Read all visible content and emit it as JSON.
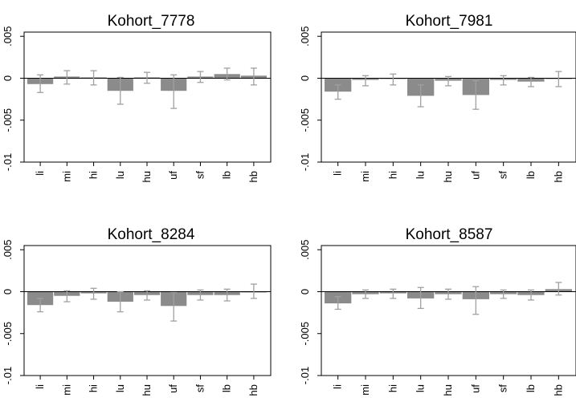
{
  "chart_data": [
    {
      "type": "bar",
      "title": "Kohort_7778",
      "categories": [
        "li",
        "mi",
        "hi",
        "lu",
        "hu",
        "uf",
        "sf",
        "lb",
        "hb"
      ],
      "values": [
        -0.0007,
        0.0002,
        0.0001,
        -0.0015,
        0.0001,
        -0.0015,
        0.0002,
        0.0005,
        0.0003
      ],
      "error_low": [
        -0.0017,
        -0.0007,
        -0.0008,
        -0.0031,
        -0.0006,
        -0.0036,
        -0.0005,
        -0.0002,
        -0.0008
      ],
      "error_high": [
        0.0004,
        0.0009,
        0.0009,
        0.0001,
        0.0007,
        0.0004,
        0.0008,
        0.0012,
        0.0012
      ],
      "ylim": [
        -0.01,
        0.0055
      ],
      "yticks": [
        0.005,
        0,
        -0.005,
        -0.01
      ],
      "ytick_labels": [
        ".005",
        "0",
        "-.005",
        "-.01"
      ],
      "grid": false
    },
    {
      "type": "bar",
      "title": "Kohort_7981",
      "categories": [
        "li",
        "mi",
        "hi",
        "lu",
        "hu",
        "uf",
        "sf",
        "lb",
        "hb"
      ],
      "values": [
        -0.0016,
        -0.0002,
        -0.0001,
        -0.0021,
        -0.0003,
        -0.002,
        -0.0002,
        -0.0004,
        -0.0001
      ],
      "error_low": [
        -0.0025,
        -0.0009,
        -0.0008,
        -0.0034,
        -0.0009,
        -0.0037,
        -0.0008,
        -0.001,
        -0.001
      ],
      "error_high": [
        -0.0008,
        0.0003,
        0.0005,
        -0.0008,
        0.0002,
        -0.0003,
        0.0003,
        0.0001,
        0.0008
      ],
      "ylim": [
        -0.01,
        0.0055
      ],
      "yticks": [
        0.005,
        0,
        -0.005,
        -0.01
      ],
      "ytick_labels": [
        ".005",
        "0",
        "-.005",
        "-.01"
      ],
      "grid": false
    },
    {
      "type": "bar",
      "title": "Kohort_8284",
      "categories": [
        "li",
        "mi",
        "hi",
        "lu",
        "hu",
        "uf",
        "sf",
        "lb",
        "hb"
      ],
      "values": [
        -0.0016,
        -0.0005,
        -0.0002,
        -0.0012,
        -0.0004,
        -0.0017,
        -0.0004,
        -0.0004,
        0.0
      ],
      "error_low": [
        -0.0024,
        -0.0012,
        -0.0009,
        -0.0024,
        -0.001,
        -0.0035,
        -0.001,
        -0.0011,
        -0.0008
      ],
      "error_high": [
        -0.0008,
        0.0001,
        0.0004,
        0.0,
        0.0001,
        -0.0001,
        0.0002,
        0.0003,
        0.0009
      ],
      "ylim": [
        -0.01,
        0.0055
      ],
      "yticks": [
        0.005,
        0,
        -0.005,
        -0.01
      ],
      "ytick_labels": [
        ".005",
        "0",
        "-.005",
        "-.01"
      ],
      "grid": false
    },
    {
      "type": "bar",
      "title": "Kohort_8587",
      "categories": [
        "li",
        "mi",
        "hi",
        "lu",
        "hu",
        "uf",
        "sf",
        "lb",
        "hb"
      ],
      "values": [
        -0.0014,
        -0.0003,
        -0.0002,
        -0.0008,
        -0.0003,
        -0.0009,
        -0.0003,
        -0.0004,
        0.0003
      ],
      "error_low": [
        -0.0021,
        -0.0008,
        -0.0008,
        -0.002,
        -0.0009,
        -0.0027,
        -0.0008,
        -0.001,
        -0.0004
      ],
      "error_high": [
        -0.0006,
        0.0002,
        0.0003,
        0.0005,
        0.0003,
        0.0006,
        0.0002,
        0.0002,
        0.0011
      ],
      "ylim": [
        -0.01,
        0.0055
      ],
      "yticks": [
        0.005,
        0,
        -0.005,
        -0.01
      ],
      "ytick_labels": [
        ".005",
        "0",
        "-.005",
        "-.01"
      ],
      "grid": false
    }
  ],
  "colors": {
    "bar": "#8b8b8b",
    "error_bar": "#a0a0a0",
    "axis": "#000000",
    "zero_line": "#000000"
  }
}
